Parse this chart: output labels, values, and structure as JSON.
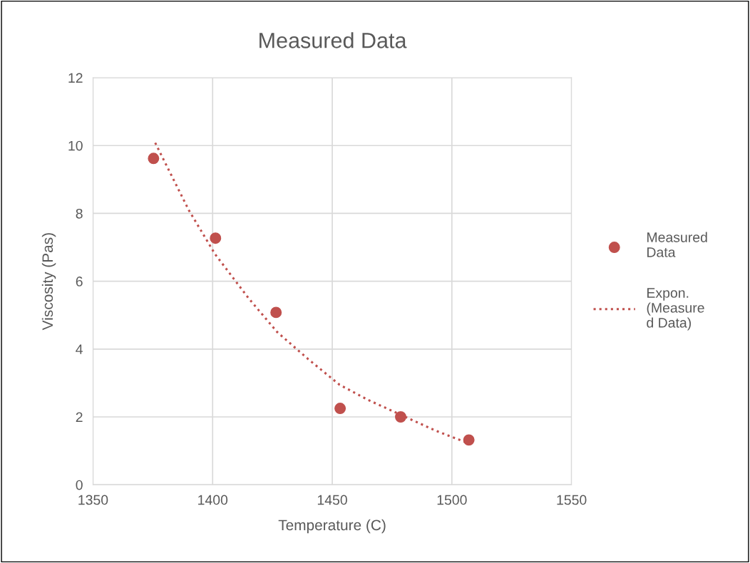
{
  "chart_data": {
    "type": "scatter",
    "title": "Measured Data",
    "xlabel": "Temperature (C)",
    "ylabel": "Viscosity (Pas)",
    "xlim": [
      1350,
      1550
    ],
    "xticks": [
      1350,
      1400,
      1450,
      1500,
      1550
    ],
    "ylim": [
      0,
      12
    ],
    "yticks": [
      0,
      2,
      4,
      6,
      8,
      10,
      12
    ],
    "grid": true,
    "legend": "right",
    "marker": "circle",
    "series": [
      {
        "name": "Measured\nData",
        "color": "#c0504d",
        "x": [
          1375.3,
          1401.2,
          1426.5,
          1453.3,
          1478.6,
          1507.1
        ],
        "values": [
          9.62,
          7.27,
          5.08,
          2.25,
          2.0,
          1.32
        ]
      },
      {
        "name": "Expon.\n(Measure\nd Data)",
        "color": "#c0504d",
        "type": "line",
        "line_style": "dotted",
        "marker": "none",
        "x": [
          1376,
          1390,
          1401,
          1415,
          1427,
          1440,
          1453,
          1465,
          1479,
          1493,
          1507
        ],
        "values": [
          10.08,
          8.1,
          6.8,
          5.5,
          4.5,
          3.7,
          2.95,
          2.5,
          2.05,
          1.6,
          1.22
        ]
      }
    ]
  }
}
